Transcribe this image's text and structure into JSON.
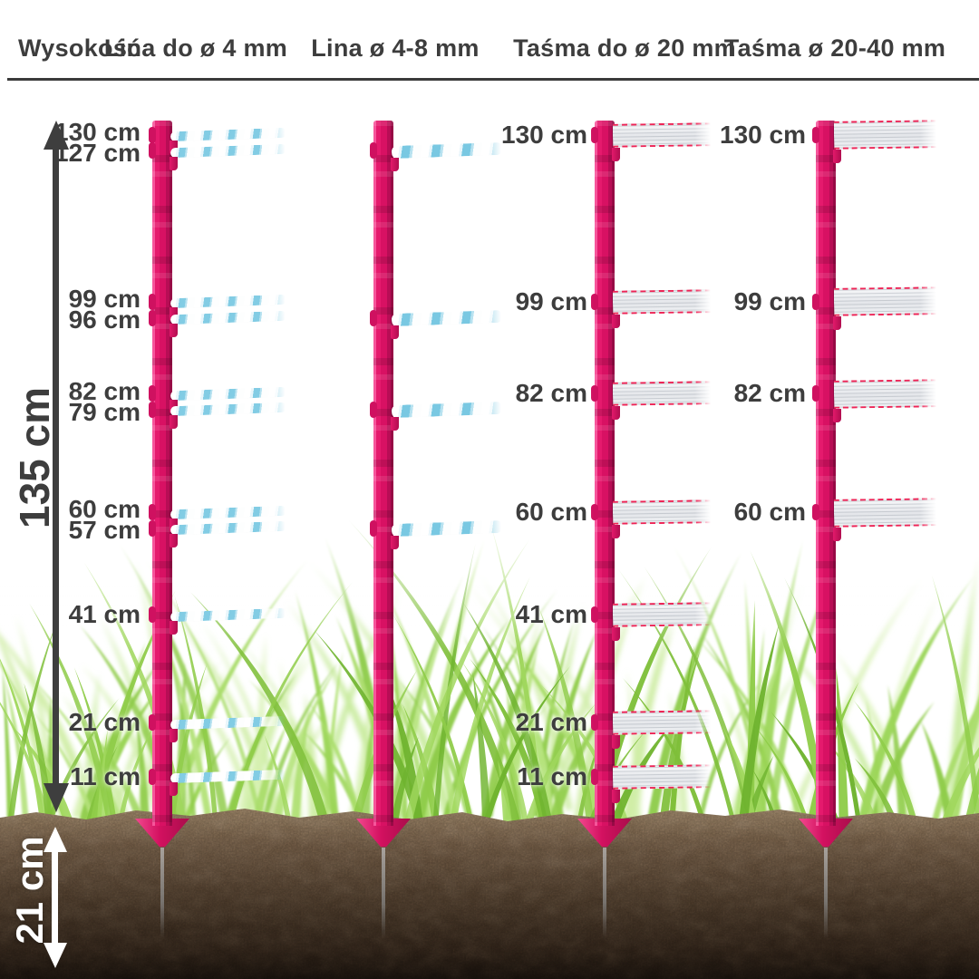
{
  "header": {
    "height_column_label": "Wysokość",
    "columns": [
      "Lina do ø 4 mm",
      "Lina ø 4-8 mm",
      "Taśma do ø 20 mm",
      "Taśma ø 20-40 mm"
    ]
  },
  "measurements": {
    "above_ground": "135 cm",
    "below_ground": "21 cm"
  },
  "posts": [
    {
      "id": "post-lina-do-4mm",
      "column_header": "Lina do ø 4 mm",
      "type": "rope-thin",
      "labels": [
        {
          "cm": 130,
          "text": "130 cm"
        },
        {
          "cm": 127,
          "text": "127 cm"
        },
        {
          "cm": 99,
          "text": "99 cm"
        },
        {
          "cm": 96,
          "text": "96 cm"
        },
        {
          "cm": 82,
          "text": "82 cm"
        },
        {
          "cm": 79,
          "text": "79 cm"
        },
        {
          "cm": 60,
          "text": "60 cm"
        },
        {
          "cm": 57,
          "text": "57 cm"
        },
        {
          "cm": 41,
          "text": "41 cm"
        },
        {
          "cm": 21,
          "text": "21 cm"
        },
        {
          "cm": 11,
          "text": "11 cm"
        }
      ],
      "attachment_heights_cm": [
        130,
        127,
        99,
        96,
        82,
        79,
        60,
        57,
        41,
        21,
        11
      ]
    },
    {
      "id": "post-lina-4-8mm",
      "column_header": "Lina ø 4-8 mm",
      "type": "rope-thick",
      "labels": [],
      "attachment_heights_cm": [
        127,
        96,
        79,
        57
      ]
    },
    {
      "id": "post-tasma-do-20mm",
      "column_header": "Taśma do ø 20 mm",
      "type": "tape-20",
      "labels": [
        {
          "cm": 130,
          "text": "130 cm"
        },
        {
          "cm": 99,
          "text": "99 cm"
        },
        {
          "cm": 82,
          "text": "82 cm"
        },
        {
          "cm": 60,
          "text": "60 cm"
        },
        {
          "cm": 41,
          "text": "41 cm"
        },
        {
          "cm": 21,
          "text": "21 cm"
        },
        {
          "cm": 11,
          "text": "11 cm"
        }
      ],
      "attachment_heights_cm": [
        130,
        99,
        82,
        60,
        41,
        21,
        11
      ]
    },
    {
      "id": "post-tasma-20-40mm",
      "column_header": "Taśma ø 20-40 mm",
      "type": "tape-40",
      "labels": [
        {
          "cm": 130,
          "text": "130 cm"
        },
        {
          "cm": 99,
          "text": "99 cm"
        },
        {
          "cm": 82,
          "text": "82 cm"
        },
        {
          "cm": 60,
          "text": "60 cm"
        }
      ],
      "attachment_heights_cm": [
        130,
        99,
        82,
        60
      ]
    }
  ],
  "colors": {
    "post_pink": "#DE1563",
    "tape_red": "#EE2456",
    "rope_blue": "#7FCBE3",
    "text_dark": "#3D3D3D",
    "grass_green": "#8FCC49",
    "soil_brown": "#3B2D20"
  }
}
